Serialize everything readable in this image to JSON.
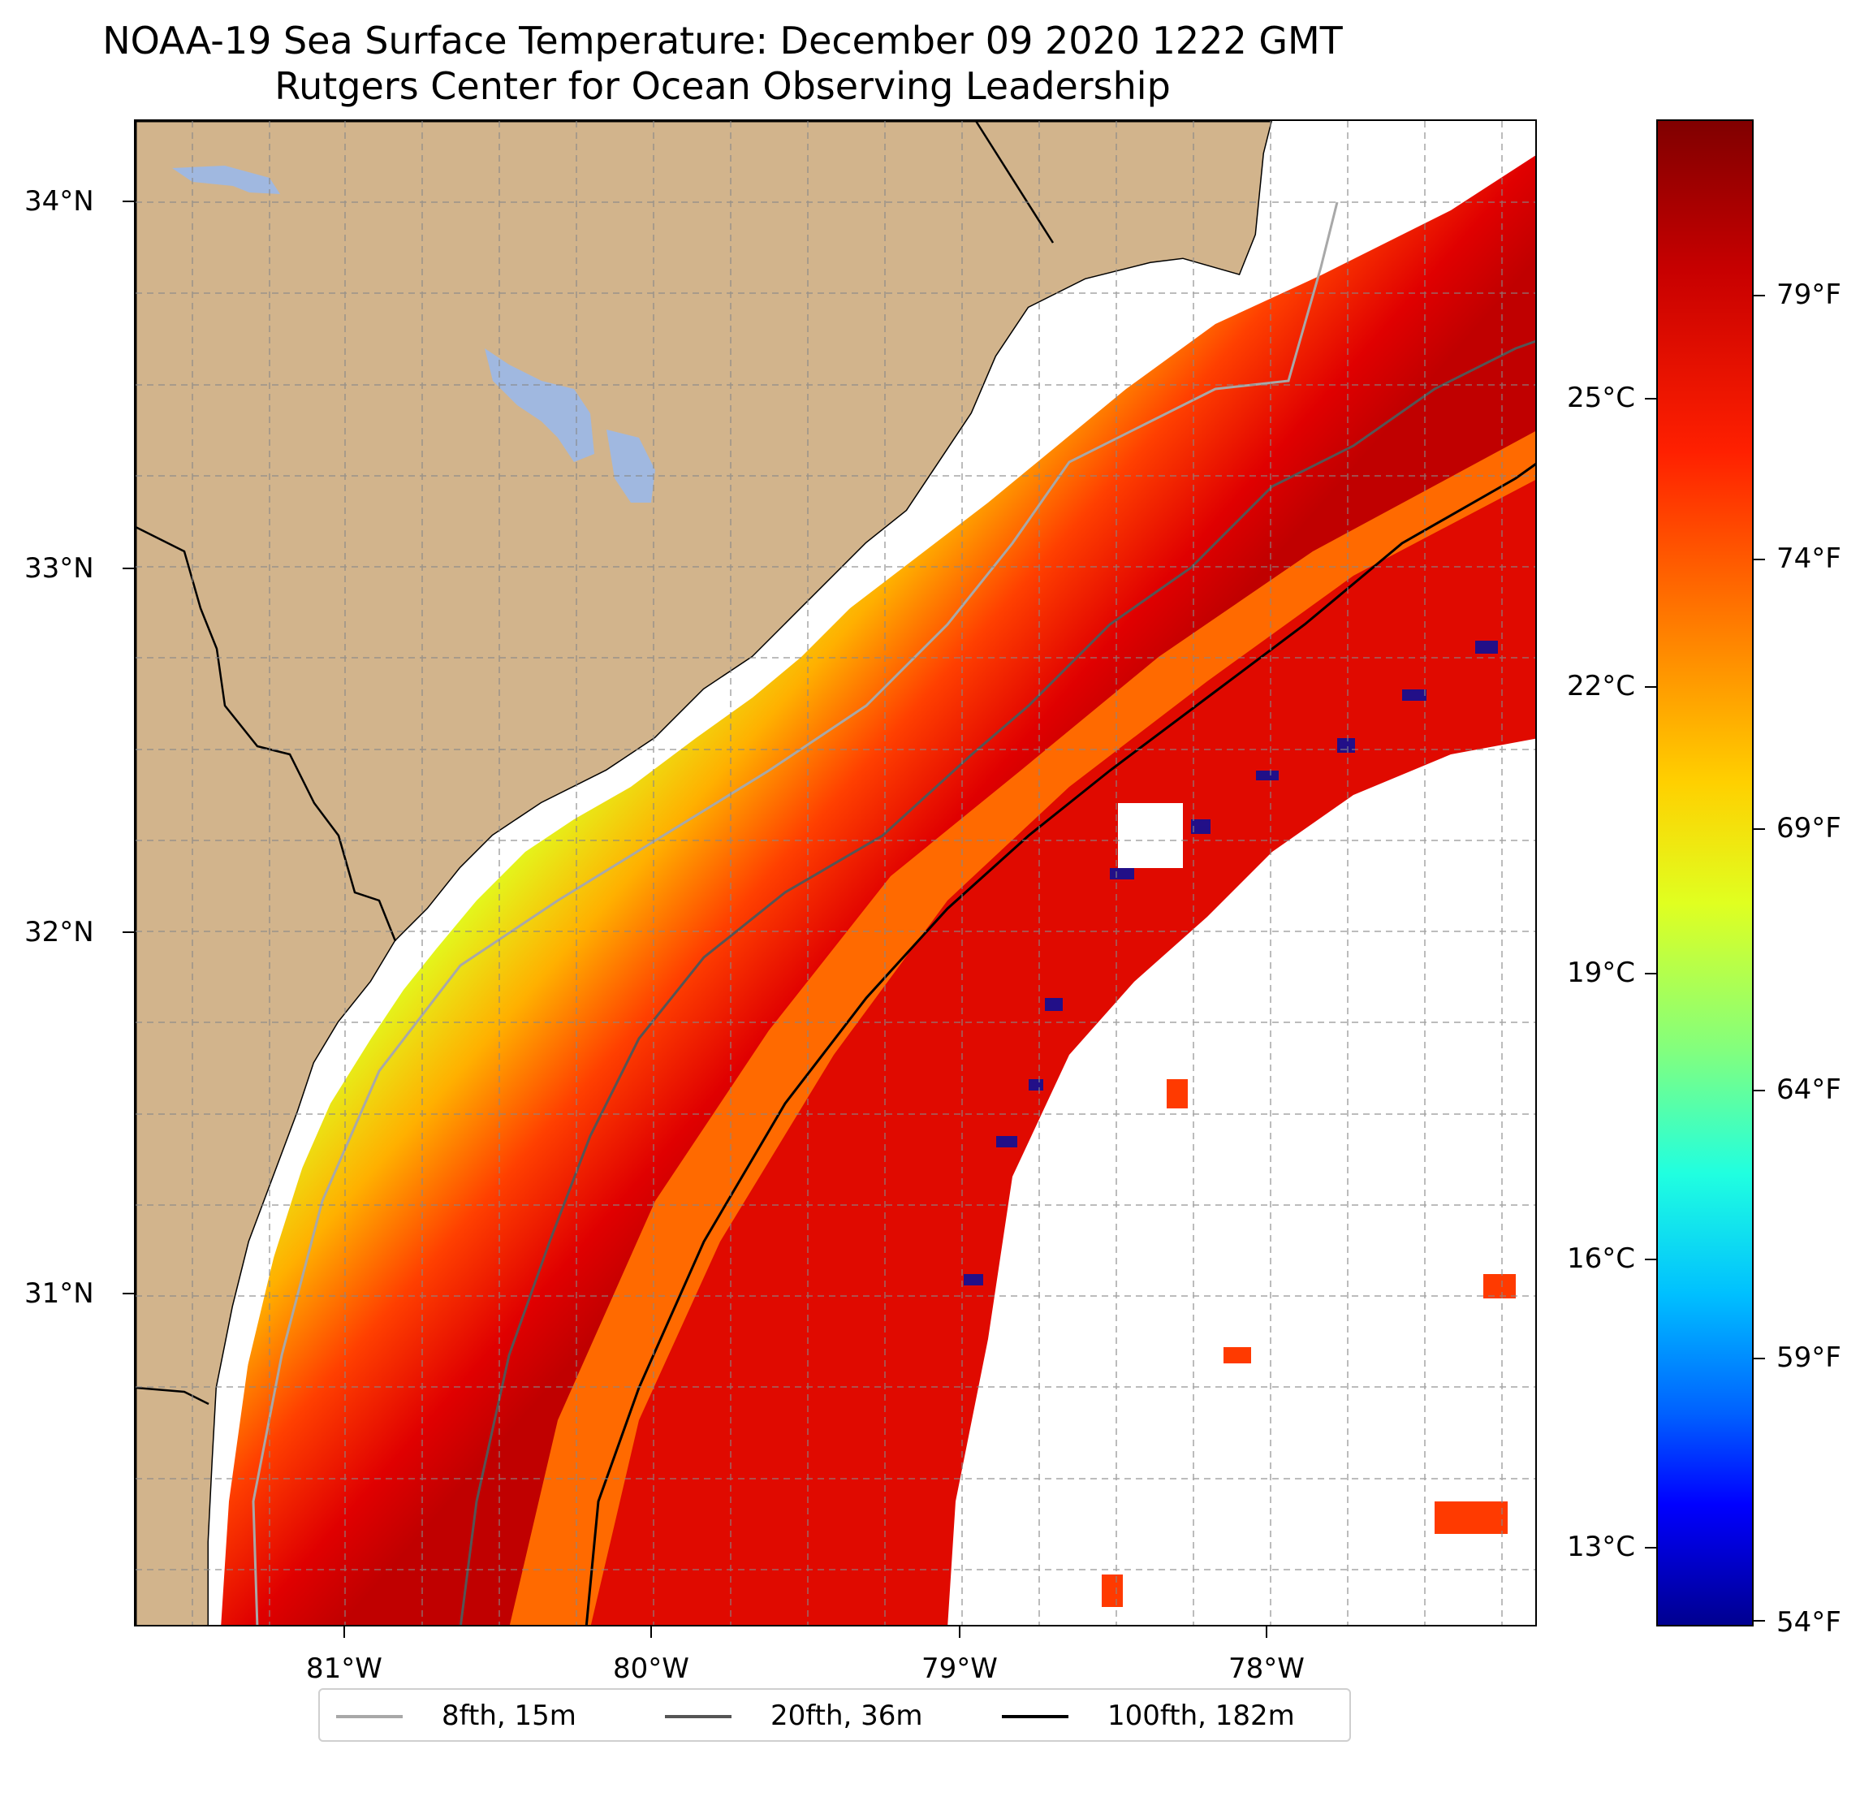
{
  "title": {
    "line1": "NOAA-19 Sea Surface Temperature: December 09 2020 1222 GMT",
    "line2": "Rutgers Center for Ocean Observing Leadership"
  },
  "map": {
    "lat_labels": [
      "34°N",
      "33°N",
      "32°N",
      "31°N"
    ],
    "lon_labels": [
      "81°W",
      "80°W",
      "79°W",
      "78°W"
    ],
    "lat_range": [
      30.1,
      34.22
    ],
    "lon_range": [
      -81.68,
      -77.15
    ],
    "colors": {
      "land": "#d2b48c",
      "lake": "#a0b8e0",
      "no_data": "#ffffff",
      "grid": "#9a9a9a",
      "coast": "#000000"
    }
  },
  "colorbar": {
    "celsius_labels": [
      "25°C",
      "22°C",
      "19°C",
      "16°C",
      "13°C"
    ],
    "fahrenheit_labels": [
      "79°F",
      "74°F",
      "69°F",
      "64°F",
      "59°F",
      "54°F"
    ],
    "colormap": "jet"
  },
  "legend": {
    "items": [
      {
        "label": "8fth, 15m",
        "color": "#a8a8a8"
      },
      {
        "label": "20fth, 36m",
        "color": "#555555"
      },
      {
        "label": "100fth, 182m",
        "color": "#000000"
      }
    ]
  }
}
